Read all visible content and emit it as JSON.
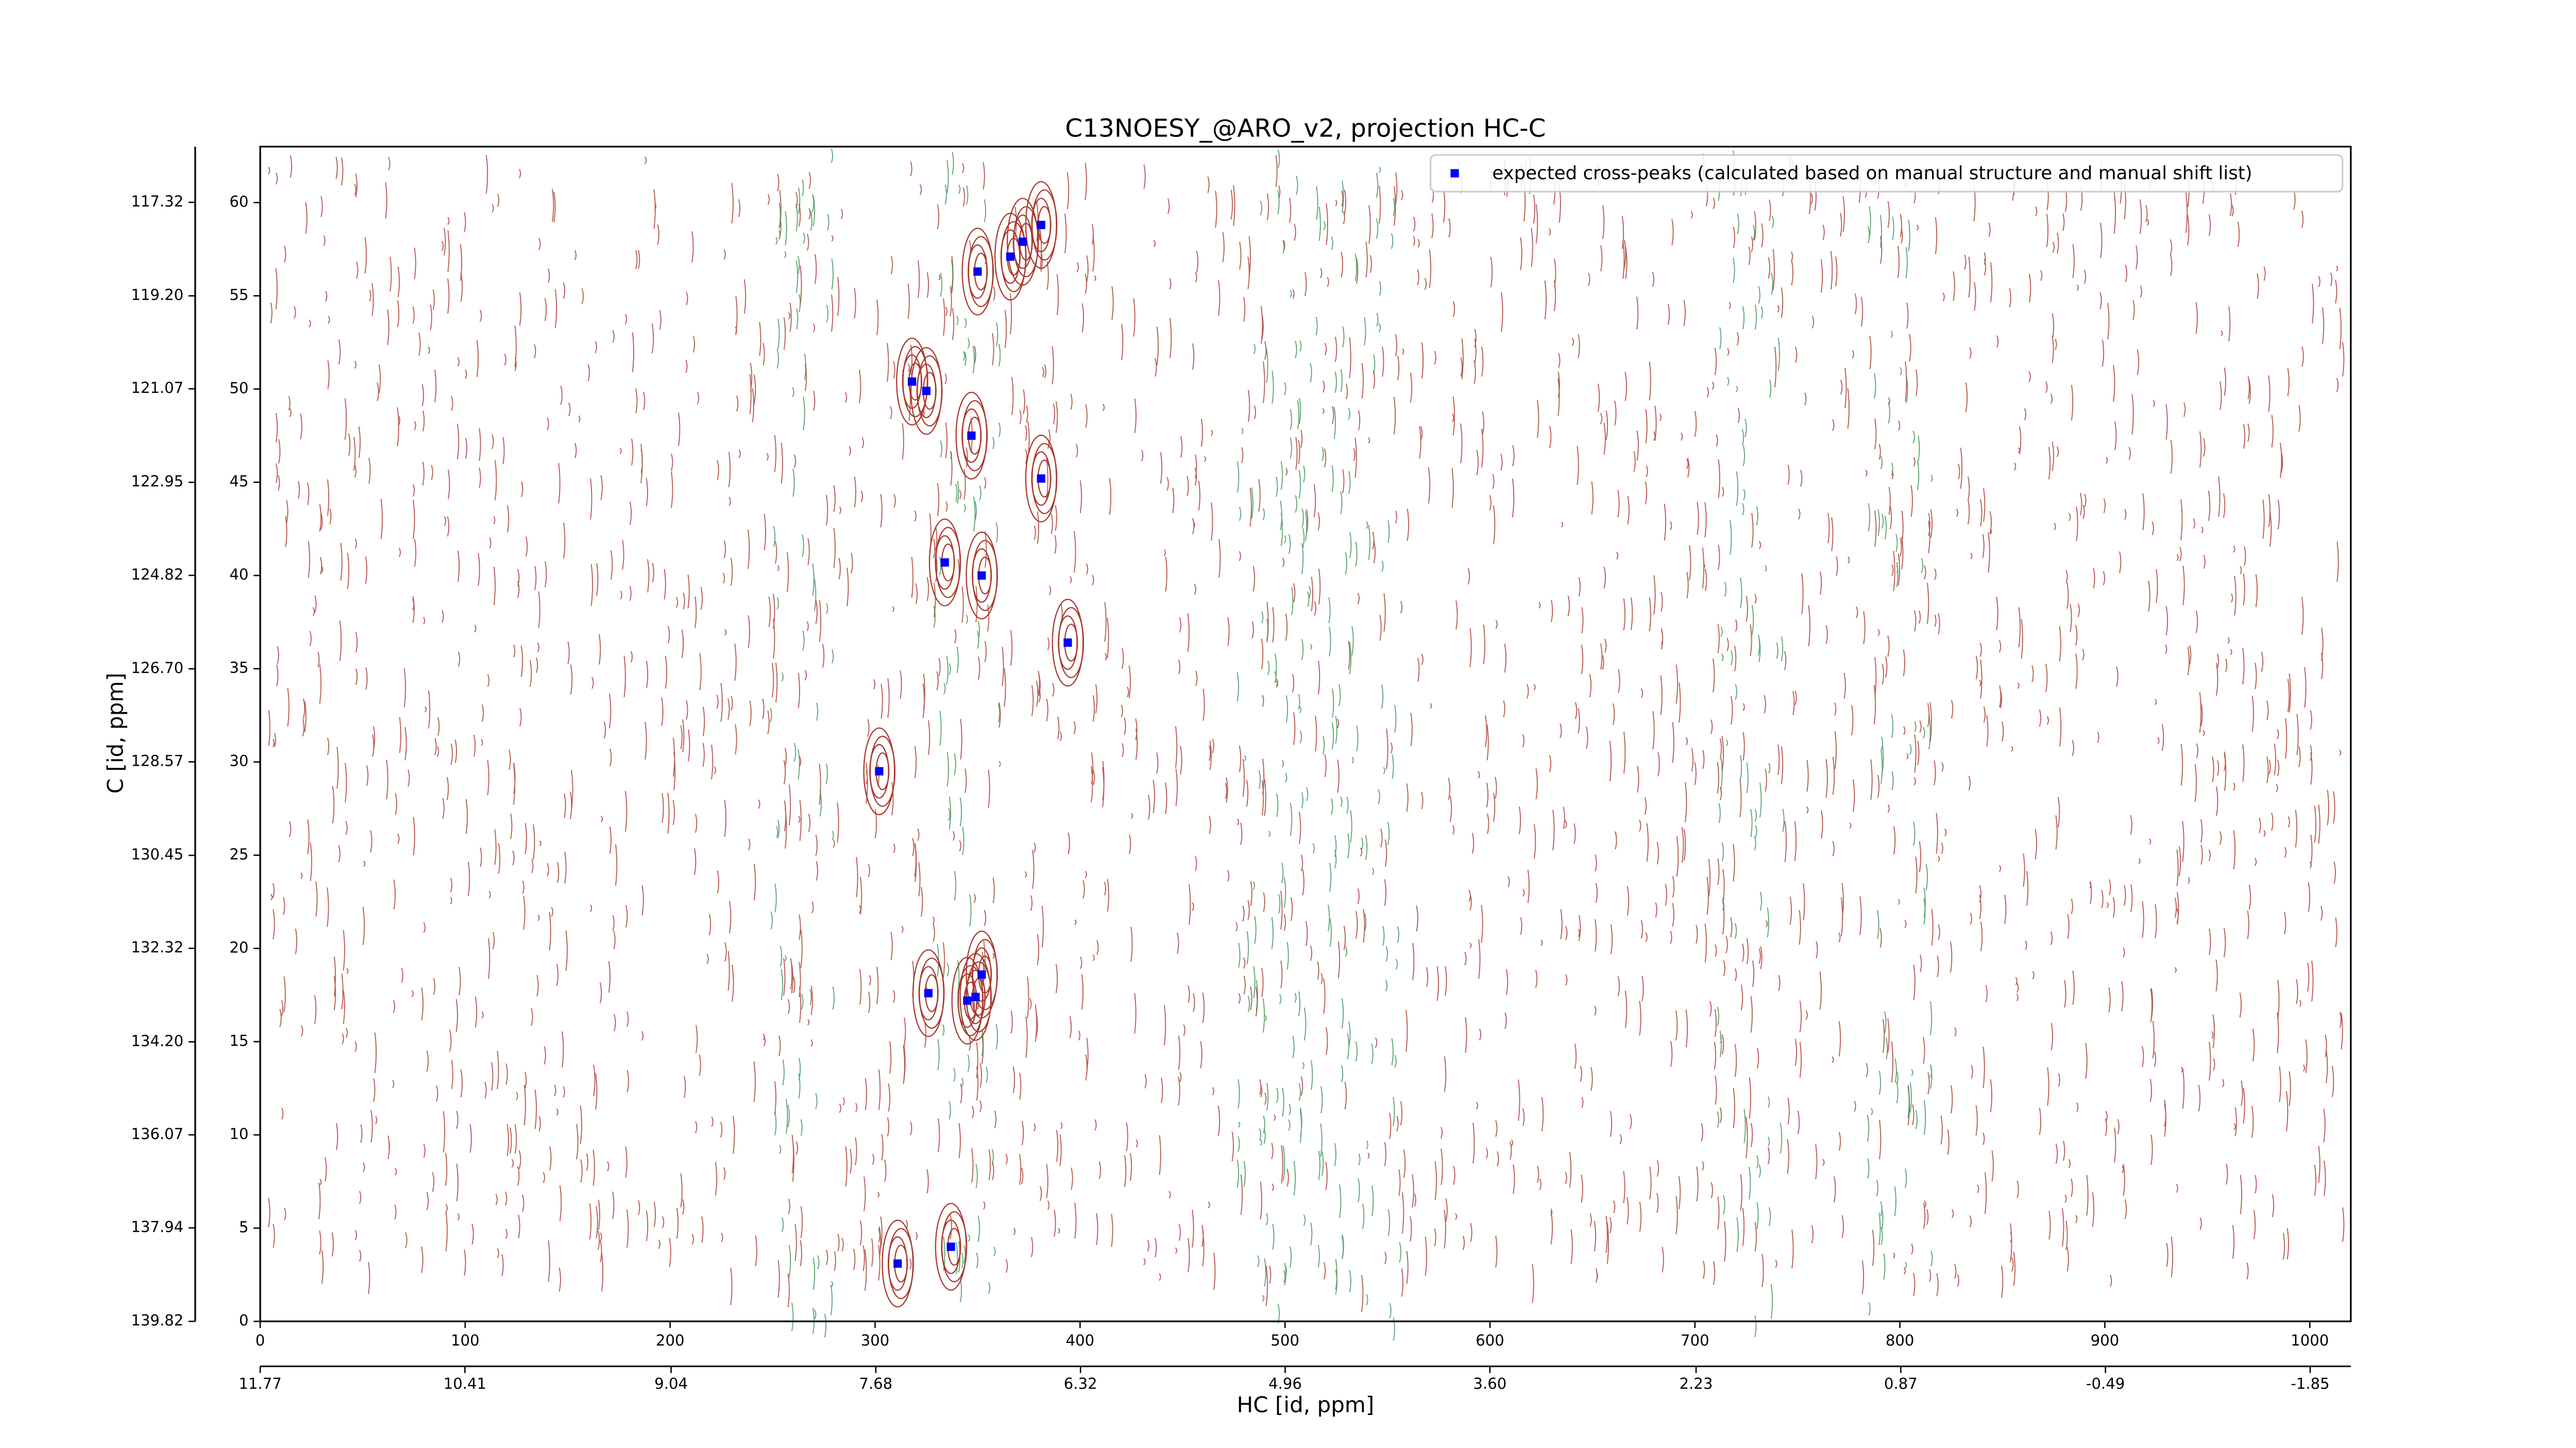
{
  "chart_data": {
    "type": "scatter",
    "title": "C13NOESY_@ARO_v2, projection HC-C",
    "xlabel": "HC [id, ppm]",
    "ylabel": "C [id, ppm]",
    "xlim": [
      0,
      1020
    ],
    "ylim": [
      0,
      63
    ],
    "xticks": [
      0,
      100,
      200,
      300,
      400,
      500,
      600,
      700,
      800,
      900,
      1000
    ],
    "yticks": [
      0,
      5,
      10,
      15,
      20,
      25,
      30,
      35,
      40,
      45,
      50,
      55,
      60
    ],
    "x2lim": [
      11.77,
      -2.12
    ],
    "x2ticks": [
      11.77,
      10.41,
      9.04,
      7.68,
      6.32,
      4.96,
      {
        "value": 3.6,
        "label": "3.60"
      },
      2.23,
      0.87,
      -0.49,
      -1.85
    ],
    "y2lim": [
      139.82,
      116.2
    ],
    "y2ticks": [
      117.32,
      {
        "value": 119.2,
        "label": "119.20"
      },
      121.07,
      122.95,
      124.82,
      {
        "value": 126.7,
        "label": "126.70"
      },
      128.57,
      130.45,
      132.32,
      {
        "value": 134.2,
        "label": "134.20"
      },
      136.07,
      137.94,
      139.82
    ],
    "legend": "upper right",
    "series": [
      {
        "name": "expected cross-peaks (calculated based on manual structure and manual shift list)",
        "color": "#0000ff",
        "x": [
          381,
          372,
          366,
          350,
          318,
          325,
          347,
          381,
          334,
          352,
          394,
          302,
          352,
          326,
          349,
          345,
          311,
          337
        ],
        "values": [
          58.8,
          57.9,
          57.1,
          56.3,
          50.4,
          49.9,
          47.5,
          45.2,
          40.7,
          40.0,
          36.4,
          29.5,
          18.6,
          17.6,
          17.4,
          17.2,
          3.1,
          4.0
        ]
      }
    ]
  }
}
